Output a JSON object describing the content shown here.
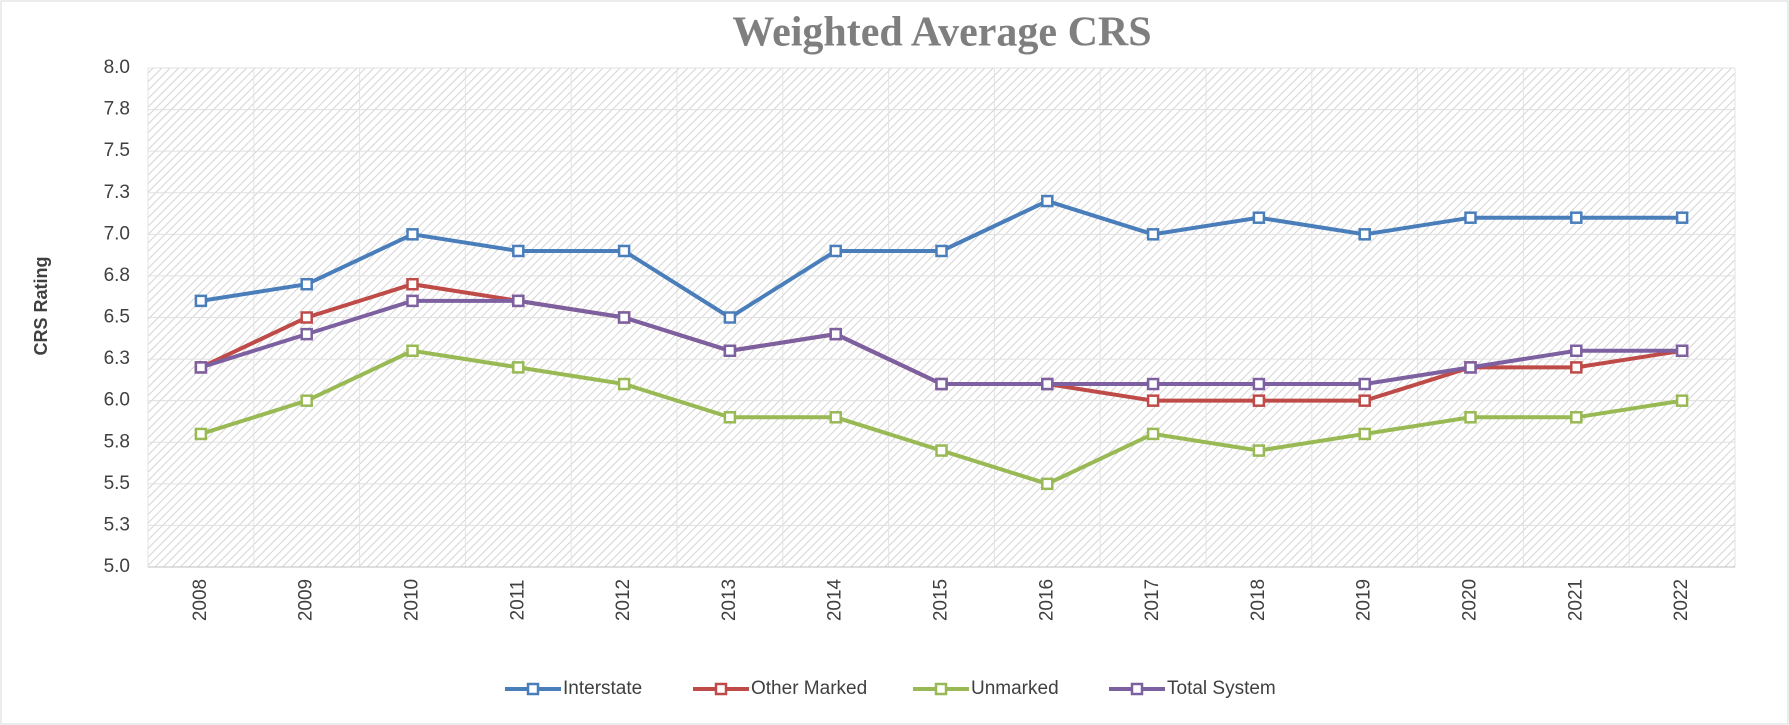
{
  "chart_data": {
    "type": "line",
    "title": "Weighted Average CRS",
    "y_label": "CRS Rating",
    "categories": [
      "2008",
      "2009",
      "2010",
      "2011",
      "2012",
      "2013",
      "2014",
      "2015",
      "2016",
      "2017",
      "2018",
      "2019",
      "2020",
      "2021",
      "2022"
    ],
    "series": [
      {
        "name": "Interstate",
        "color": "#4a7ebb",
        "values": [
          6.6,
          6.7,
          7.0,
          6.9,
          6.9,
          6.5,
          6.9,
          6.9,
          7.2,
          7.0,
          7.1,
          7.0,
          7.1,
          7.1,
          7.1
        ]
      },
      {
        "name": "Other Marked",
        "color": "#be4b48",
        "values": [
          6.2,
          6.5,
          6.7,
          6.6,
          6.5,
          6.3,
          6.4,
          6.1,
          6.1,
          6.0,
          6.0,
          6.0,
          6.2,
          6.2,
          6.3
        ]
      },
      {
        "name": "Unmarked",
        "color": "#98b954",
        "values": [
          5.8,
          6.0,
          6.3,
          6.2,
          6.1,
          5.9,
          5.9,
          5.7,
          5.5,
          5.8,
          5.7,
          5.8,
          5.9,
          5.9,
          6.0
        ]
      },
      {
        "name": "Total System",
        "color": "#7d60a0",
        "values": [
          6.2,
          6.4,
          6.6,
          6.6,
          6.5,
          6.3,
          6.4,
          6.1,
          6.1,
          6.1,
          6.1,
          6.1,
          6.2,
          6.3,
          6.3
        ]
      }
    ],
    "ylim": [
      5,
      8
    ],
    "yticks": [
      {
        "value": 5,
        "label": "5.0"
      },
      {
        "value": 5.25,
        "label": "5.3"
      },
      {
        "value": 5.5,
        "label": "5.5"
      },
      {
        "value": 5.75,
        "label": "5.8"
      },
      {
        "value": 6,
        "label": "6.0"
      },
      {
        "value": 6.25,
        "label": "6.3"
      },
      {
        "value": 6.5,
        "label": "6.5"
      },
      {
        "value": 6.75,
        "label": "6.8"
      },
      {
        "value": 7,
        "label": "7.0"
      },
      {
        "value": 7.25,
        "label": "7.3"
      },
      {
        "value": 7.5,
        "label": "7.5"
      },
      {
        "value": 7.75,
        "label": "7.8"
      },
      {
        "value": 8,
        "label": "8.0"
      }
    ],
    "grid": true,
    "legend": "bottom"
  }
}
